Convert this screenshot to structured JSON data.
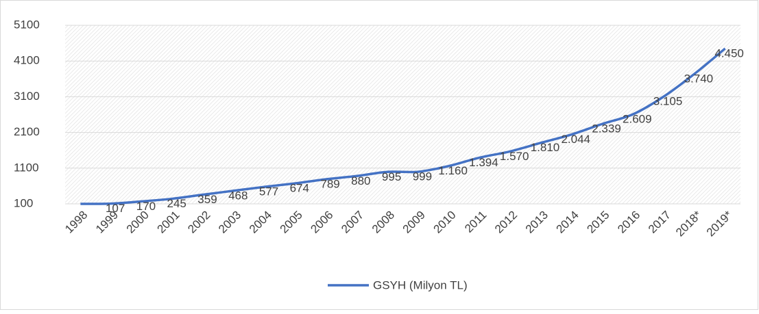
{
  "chart_data": {
    "type": "line",
    "categories": [
      "1998",
      "1999",
      "2000",
      "2001",
      "2002",
      "2003",
      "2004",
      "2005",
      "2006",
      "2007",
      "2008",
      "2009",
      "2010",
      "2011",
      "2012",
      "2013",
      "2014",
      "2015",
      "2016",
      "2017",
      "2018*",
      "2019*"
    ],
    "series": [
      {
        "name": "GSYH (Milyon TL)",
        "color": "#4472c4",
        "values": [
          100,
          107,
          170,
          245,
          359,
          468,
          577,
          674,
          789,
          880,
          995,
          999,
          1160,
          1394,
          1570,
          1810,
          2044,
          2339,
          2609,
          3105,
          3740,
          4450
        ],
        "value_labels": [
          null,
          "107",
          "170",
          "245",
          "359",
          "468",
          "577",
          "674",
          "789",
          "880",
          "995",
          "999",
          "1.160",
          "1.394",
          "1.570",
          "1.810",
          "2.044",
          "2.339",
          "2.609",
          "3.105",
          "3.740",
          "4.450"
        ]
      }
    ],
    "ylim": [
      100,
      5100
    ],
    "yticks": [
      100,
      1100,
      2100,
      3100,
      4100,
      5100
    ],
    "grid": true,
    "legend": "bottom"
  }
}
